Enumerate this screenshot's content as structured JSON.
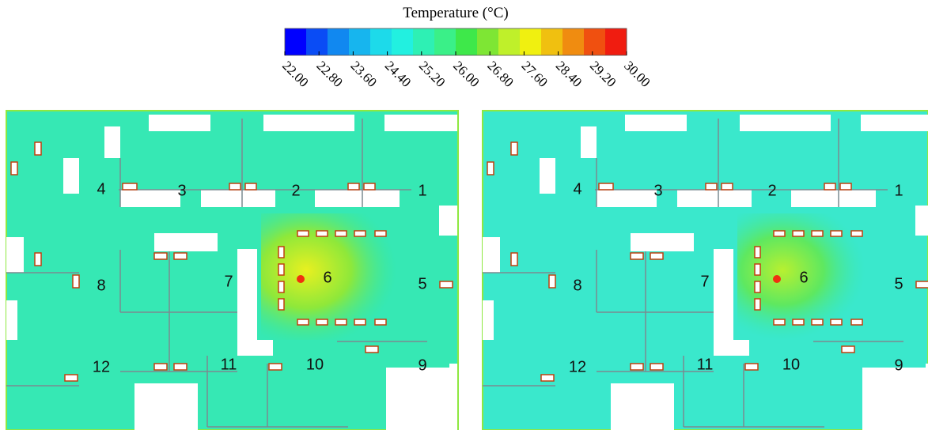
{
  "colorbar": {
    "title": "Temperature (°C)",
    "lim": [
      22,
      30
    ],
    "colors": [
      "#0000ff",
      "#0a4cf5",
      "#1188f0",
      "#17b5ee",
      "#1ddaea",
      "#22f0e0",
      "#2ef0b4",
      "#3af088",
      "#3ee84a",
      "#7ee634",
      "#bff02a",
      "#f0f010",
      "#f0c010",
      "#f08c10",
      "#f05010",
      "#f01c10"
    ],
    "ticks": [
      {
        "value": 22,
        "label": "22.00"
      },
      {
        "value": 22.8,
        "label": "22.80"
      },
      {
        "value": 23.6,
        "label": "23.60"
      },
      {
        "value": 24.4,
        "label": "24.40"
      },
      {
        "value": 25.2,
        "label": "25.20"
      },
      {
        "value": 26,
        "label": "26.00"
      },
      {
        "value": 26.8,
        "label": "26.80"
      },
      {
        "value": 27.6,
        "label": "27.60"
      },
      {
        "value": 28.4,
        "label": "28.40"
      },
      {
        "value": 29.2,
        "label": "29.20"
      },
      {
        "value": 30,
        "label": "30.00"
      }
    ]
  },
  "panels": [
    {
      "rooms": [
        "1",
        "2",
        "3",
        "4",
        "5",
        "6",
        "7",
        "8",
        "9",
        "10",
        "11",
        "12"
      ]
    },
    {
      "rooms": [
        "1",
        "2",
        "3",
        "4",
        "5",
        "6",
        "7",
        "8",
        "9",
        "10",
        "11",
        "12"
      ]
    }
  ]
}
